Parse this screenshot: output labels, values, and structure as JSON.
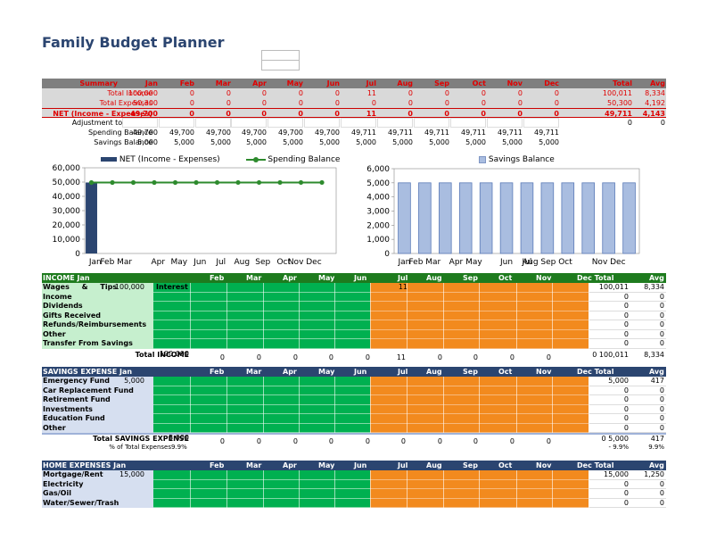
{
  "title": "Family Budget Planner",
  "months": [
    "Jan",
    "Feb",
    "Mar",
    "Apr",
    "May",
    "Jun",
    "Jul",
    "Aug",
    "Sep",
    "Oct",
    "Nov",
    "Dec"
  ],
  "summary": {
    "header": {
      "label": "Summary",
      "total": "Total",
      "avg": "Avg"
    },
    "rows": [
      {
        "label": "Total Income",
        "vals": [
          "100,000",
          "0",
          "0",
          "0",
          "0",
          "0",
          "11",
          "0",
          "0",
          "0",
          "0",
          "0"
        ],
        "total": "100,011",
        "avg": "8,334"
      },
      {
        "label": "Total Expenses",
        "vals": [
          "50,300",
          "0",
          "0",
          "0",
          "0",
          "0",
          "0",
          "0",
          "0",
          "0",
          "0",
          "0"
        ],
        "total": "50,300",
        "avg": "4,192"
      },
      {
        "label": "NET (Income - Expenses)",
        "vals": [
          "49,700",
          "0",
          "0",
          "0",
          "0",
          "0",
          "11",
          "0",
          "0",
          "0",
          "0",
          "0"
        ],
        "total": "49,711",
        "avg": "4,143"
      },
      {
        "label": "Adjustment to Savings",
        "vals": [
          "",
          "",
          "",
          "",
          "",
          "",
          "",
          "",
          "",
          "",
          "",
          ""
        ],
        "total": "0",
        "avg": "0"
      },
      {
        "label": "Spending Balance",
        "vals": [
          "49,700",
          "49,700",
          "49,700",
          "49,700",
          "49,700",
          "49,700",
          "49,711",
          "49,711",
          "49,711",
          "49,711",
          "49,711",
          "49,711"
        ],
        "total": "",
        "avg": ""
      },
      {
        "label": "Savings Balance",
        "vals": [
          "5,000",
          "5,000",
          "5,000",
          "5,000",
          "5,000",
          "5,000",
          "5,000",
          "5,000",
          "5,000",
          "5,000",
          "5,000",
          "5,000"
        ],
        "total": "",
        "avg": ""
      }
    ]
  },
  "chart_data": [
    {
      "type": "bar",
      "categories": [
        "Jan",
        "Feb",
        "Mar",
        "Apr",
        "May",
        "Jun",
        "Jul",
        "Aug",
        "Sep",
        "Oct",
        "Nov",
        "Dec"
      ],
      "series": [
        {
          "name": "NET (Income - Expenses)",
          "kind": "bar",
          "values": [
            49700,
            0,
            0,
            0,
            0,
            0,
            11,
            0,
            0,
            0,
            0,
            0
          ]
        },
        {
          "name": "Spending Balance",
          "kind": "line",
          "values": [
            49700,
            49700,
            49700,
            49700,
            49700,
            49700,
            49711,
            49711,
            49711,
            49711,
            49711,
            49711
          ]
        }
      ],
      "ylim": [
        0,
        60000
      ],
      "yticks": [
        "0",
        "10,000",
        "20,000",
        "30,000",
        "40,000",
        "50,000",
        "60,000"
      ],
      "xticks": [
        "Jan",
        "Feb Mar",
        "",
        "Apr",
        "May",
        "Jun",
        "Jul",
        "Aug",
        "Sep",
        "Oct",
        "Nov Dec",
        ""
      ],
      "legend": "top",
      "colors": {
        "bar": "#2b4570",
        "line": "#2e8b2e"
      }
    },
    {
      "type": "bar",
      "categories": [
        "Jan",
        "Feb",
        "Mar",
        "Apr",
        "May",
        "Jun",
        "Jul",
        "Aug",
        "Sep",
        "Oct",
        "Nov",
        "Dec"
      ],
      "series": [
        {
          "name": "Savings Balance",
          "values": [
            5000,
            5000,
            5000,
            5000,
            5000,
            5000,
            5000,
            5000,
            5000,
            5000,
            5000,
            5000
          ]
        }
      ],
      "ylim": [
        0,
        6000
      ],
      "yticks": [
        "0",
        "1,000",
        "2,000",
        "3,000",
        "4,000",
        "5,000",
        "6,000"
      ],
      "xticks": [
        "Jan",
        "Feb Mar",
        "",
        "Apr May",
        "",
        "Jun",
        "Jul",
        "Aug Sep Oct",
        "",
        "",
        "Nov Dec",
        ""
      ],
      "legend": "top",
      "colors": {
        "bar": "#a9bde0"
      }
    }
  ],
  "income": {
    "header": "INCOME Jan",
    "months": [
      "Feb",
      "Mar",
      "Apr",
      "May",
      "Jun",
      "Jul",
      "Aug",
      "Sep",
      "Oct",
      "Nov",
      "Dec Total",
      "Avg"
    ],
    "rows": [
      {
        "label": "Wages & Tips",
        "jan": "100,000",
        "extra": "Interest",
        "jul": "11",
        "total": "100,011",
        "avg": "8,334"
      },
      {
        "label": "Income",
        "total": "0",
        "avg": "0"
      },
      {
        "label": "Dividends",
        "total": "0",
        "avg": "0"
      },
      {
        "label": "Gifts Received",
        "total": "0",
        "avg": "0"
      },
      {
        "label": "Refunds/Reimbursements",
        "total": "0",
        "avg": "0"
      },
      {
        "label": "Other",
        "total": "0",
        "avg": "0"
      },
      {
        "label": "Transfer From Savings",
        "total": "0",
        "avg": "0"
      }
    ],
    "total_row": {
      "label": "Total INCOME",
      "jan": "100,000",
      "vals": [
        "0",
        "0",
        "0",
        "0",
        "0",
        "11",
        "0",
        "0",
        "0",
        "0"
      ],
      "total": "0 100,011",
      "avg": "8,334"
    }
  },
  "savings": {
    "header": "SAVINGS EXPENSE Jan",
    "months": [
      "Feb",
      "Mar",
      "Apr",
      "May",
      "Jun",
      "Jul",
      "Aug",
      "Sep",
      "Oct",
      "Nov",
      "Dec Total",
      "Avg"
    ],
    "rows": [
      {
        "label": "Emergency Fund",
        "jan": "5,000",
        "total": "5,000",
        "avg": "417"
      },
      {
        "label": "Car Replacement Fund",
        "total": "0",
        "avg": "0"
      },
      {
        "label": "Retirement Fund",
        "total": "0",
        "avg": "0"
      },
      {
        "label": "Investments",
        "total": "0",
        "avg": "0"
      },
      {
        "label": "Education Fund",
        "total": "0",
        "avg": "0"
      },
      {
        "label": "Other",
        "total": "0",
        "avg": "0"
      }
    ],
    "total_row": {
      "label": "Total SAVINGS EXPENSE",
      "jan": "5,000",
      "vals": [
        "0",
        "0",
        "0",
        "0",
        "0",
        "0",
        "0",
        "0",
        "0",
        "0"
      ],
      "total": "0 5,000",
      "avg": "417"
    },
    "pct_row": {
      "label": "% of Total Expenses",
      "jan": "9.9%",
      "total": "- 9.9%",
      "avg": "9.9%"
    }
  },
  "home": {
    "header": "HOME EXPENSES Jan",
    "months": [
      "Feb",
      "Mar",
      "Apr",
      "May",
      "Jun",
      "Jul",
      "Aug",
      "Sep",
      "Oct",
      "Nov",
      "Dec Total",
      "Avg"
    ],
    "rows": [
      {
        "label": "Mortgage/Rent",
        "jan": "15,000",
        "total": "15,000",
        "avg": "1,250"
      },
      {
        "label": "Electricity",
        "total": "0",
        "avg": "0"
      },
      {
        "label": "Gas/Oil",
        "total": "0",
        "avg": "0"
      },
      {
        "label": "Water/Sewer/Trash",
        "total": "0",
        "avg": "0"
      }
    ]
  },
  "colors": {
    "summary_header": "#7f7f7f",
    "income_header": "#1e7b1e",
    "savings_header": "#2b4570",
    "green_cells": "#00b050",
    "orange_cells": "#f28a1e",
    "label_green": "#c6efce",
    "label_blue": "#d6dff0"
  }
}
